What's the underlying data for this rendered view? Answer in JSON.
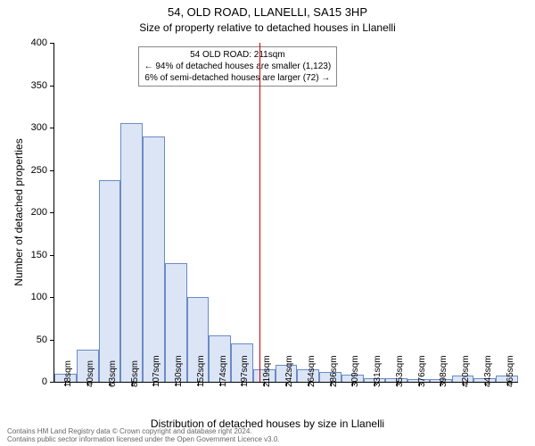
{
  "title_main": "54, OLD ROAD, LLANELLI, SA15 3HP",
  "title_sub": "Size of property relative to detached houses in Llanelli",
  "ylabel": "Number of detached properties",
  "xlabel": "Distribution of detached houses by size in Llanelli",
  "annotation": {
    "line1": "54 OLD ROAD: 211sqm",
    "line2": "← 94% of detached houses are smaller (1,123)",
    "line3": "6% of semi-detached houses are larger (72) →"
  },
  "footer_line1": "Contains HM Land Registry data © Crown copyright and database right 2024.",
  "footer_line2": "Contains public sector information licensed under the Open Government Licence v3.0.",
  "chart": {
    "type": "histogram",
    "background_color": "#ffffff",
    "bar_fill": "#dbe5f6",
    "bar_stroke": "#6b8bc4",
    "vline_color": "#cc0000",
    "vline_x": 211,
    "ylim": [
      0,
      400
    ],
    "ytick_step": 50,
    "x_bin_width_sqm": 22,
    "x_first_center": 18,
    "x_tick_labels": [
      "18sqm",
      "40sqm",
      "63sqm",
      "85sqm",
      "107sqm",
      "130sqm",
      "152sqm",
      "174sqm",
      "197sqm",
      "219sqm",
      "242sqm",
      "264sqm",
      "286sqm",
      "309sqm",
      "331sqm",
      "353sqm",
      "376sqm",
      "398sqm",
      "420sqm",
      "443sqm",
      "465sqm"
    ],
    "bar_values": [
      10,
      38,
      238,
      305,
      290,
      140,
      100,
      55,
      45,
      15,
      20,
      15,
      12,
      8,
      4,
      4,
      3,
      3,
      7,
      4,
      7
    ],
    "title_fontsize": 13,
    "subtitle_fontsize": 12,
    "label_fontsize": 12,
    "tick_fontsize": 11,
    "annotation_fontsize": 10
  }
}
